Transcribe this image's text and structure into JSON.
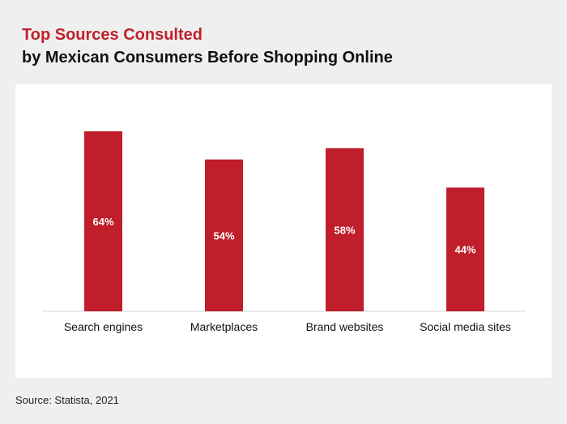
{
  "title": "Top Sources Consulted",
  "subtitle": "by Mexican Consumers Before Shopping Online",
  "source": "Source: Statista, 2021",
  "colors": {
    "bar": "#bf1e2a",
    "title_accent": "#c0212a",
    "panel_bg": "#ffffff",
    "page_bg": "#efefef",
    "axis": "#d6d6d6"
  },
  "chart_data": {
    "type": "bar",
    "title": "Top Sources Consulted",
    "subtitle": "by Mexican Consumers Before Shopping Online",
    "categories": [
      "Search engines",
      "Marketplaces",
      "Brand websites",
      "Social media sites"
    ],
    "values": [
      64,
      54,
      58,
      44
    ],
    "value_labels": [
      "64%",
      "54%",
      "58%",
      "44%"
    ],
    "xlabel": "",
    "ylabel": "",
    "ylim": [
      0,
      64
    ],
    "grid": false,
    "legend": "none"
  }
}
